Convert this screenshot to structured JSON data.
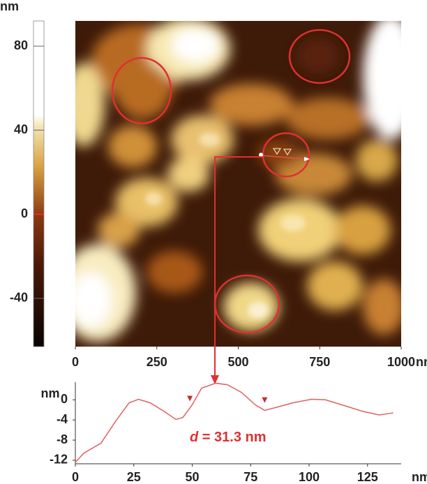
{
  "chart_data": [
    {
      "type": "heatmap",
      "colorbar_label": "nm",
      "clim": [
        -63,
        92
      ],
      "cticks": [
        80,
        40,
        0,
        -40
      ],
      "x_label": "nm",
      "xlim": [
        0,
        1000
      ],
      "xticks": [
        0,
        250,
        500,
        750,
        1000
      ]
    },
    {
      "type": "line",
      "y_label": "nm",
      "x_label": "nm",
      "xlim": [
        0,
        137
      ],
      "ylim": [
        -12.7,
        3.5
      ],
      "xticks": [
        0,
        25,
        50,
        75,
        100,
        125
      ],
      "yticks": [
        0,
        -4,
        -8,
        -12
      ],
      "color": "#e06060",
      "x": [
        0,
        3.6,
        11,
        17,
        23,
        27,
        32,
        38,
        43,
        46,
        50,
        54,
        60,
        65,
        71,
        77,
        81,
        86,
        93,
        101,
        107,
        114,
        123,
        130,
        136
      ],
      "values": [
        -12.4,
        -10.6,
        -8.6,
        -4.4,
        -0.6,
        0.1,
        -0.6,
        -2.3,
        -3.9,
        -3.5,
        -1,
        2.3,
        3.3,
        3,
        1.5,
        -1,
        -2.1,
        -1.5,
        -0.6,
        0.1,
        0,
        -1,
        -2.3,
        -3,
        -2.6
      ],
      "markers": {
        "x": [
          49,
          81
        ],
        "y": [
          -0.3,
          -0.6
        ]
      },
      "annotation": {
        "symbol": "d",
        "text": "= 31.3 nm"
      }
    }
  ]
}
